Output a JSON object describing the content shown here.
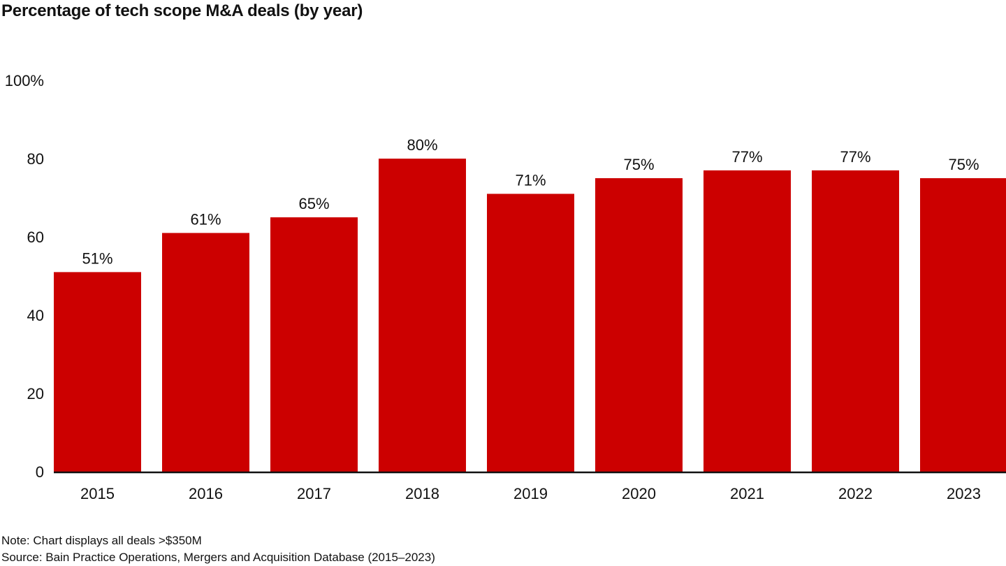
{
  "chart_data": {
    "type": "bar",
    "title": "Percentage of tech scope M&A deals (by year)",
    "xlabel": "",
    "ylabel": "",
    "categories": [
      "2015",
      "2016",
      "2017",
      "2018",
      "2019",
      "2020",
      "2021",
      "2022",
      "2023"
    ],
    "values": [
      51,
      61,
      65,
      80,
      71,
      75,
      77,
      77,
      75
    ],
    "data_labels": [
      "51%",
      "61%",
      "65%",
      "80%",
      "71%",
      "75%",
      "77%",
      "77%",
      "75%"
    ],
    "yticks": [
      0,
      20,
      40,
      60,
      80,
      100
    ],
    "ytick_labels": [
      "0",
      "20",
      "40",
      "60",
      "80",
      "100%"
    ],
    "ylim": [
      0,
      100
    ],
    "grid": false,
    "bar_color": "#cc0000"
  },
  "notes": {
    "note": "Note: Chart displays all deals >$350M",
    "source": "Source: Bain Practice Operations, Mergers and Acquisition Database (2015–2023)"
  }
}
